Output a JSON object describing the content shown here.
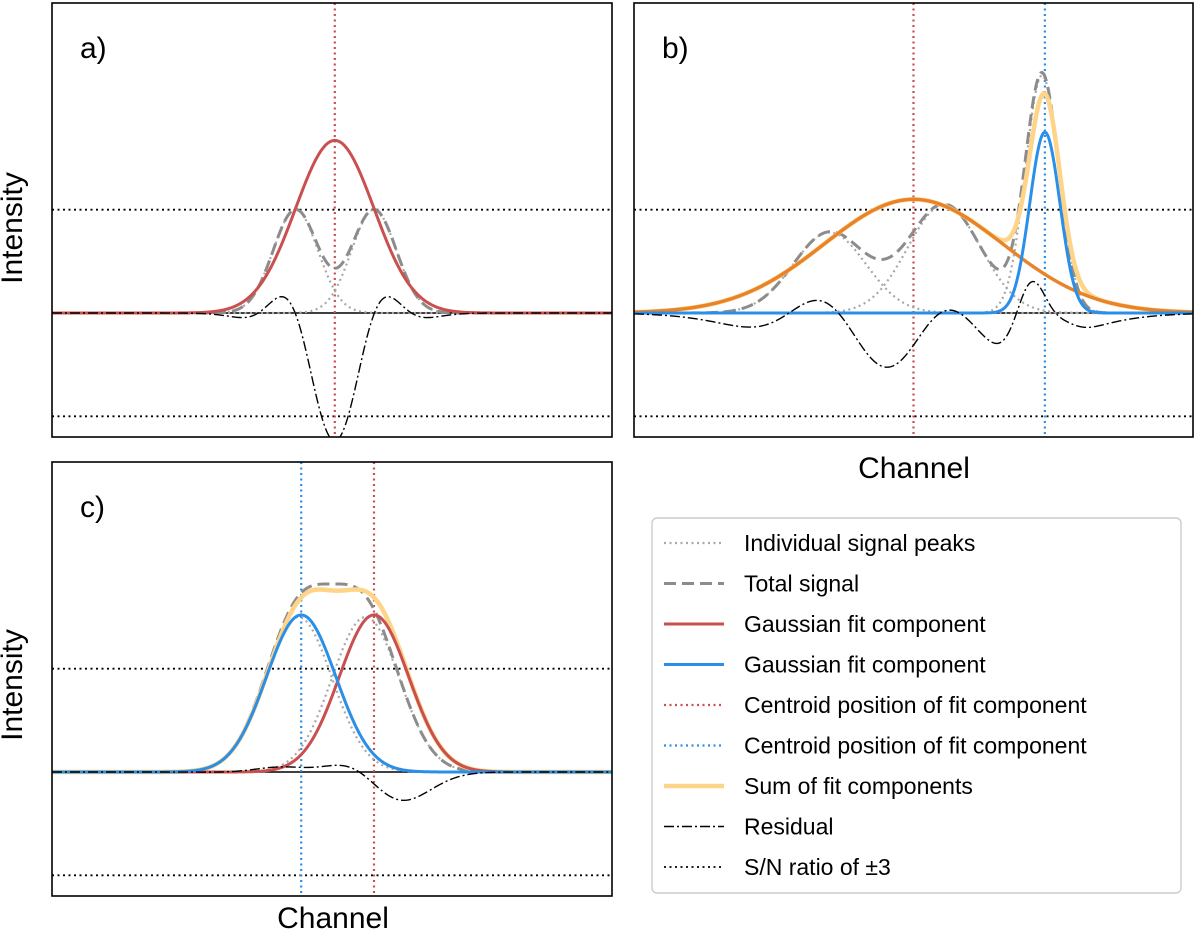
{
  "figure": {
    "shared_xlabel_top": "Channel",
    "shared_xlabel_bottom": "Channel",
    "colors": {
      "peaks": "#a8a8a8",
      "total": "#8c8c8c",
      "red": "#c9504f",
      "blue": "#2a8fe8",
      "sum": "#fdd488",
      "orange": "#e8832a",
      "black": "#000000"
    }
  },
  "chart_data": [
    {
      "type": "line",
      "panel": "a)",
      "ylabel": "Intensity",
      "xlabel": "",
      "xlim": [
        0,
        100
      ],
      "ylim": [
        -1.2,
        3.0
      ],
      "grid": false,
      "snr_levels": [
        1.0,
        -1.0
      ],
      "series": [
        {
          "name": "Individual signal peaks",
          "style": "peaks",
          "kind": "gauss",
          "components": [
            [
              1.0,
              43.5,
              4.0
            ]
          ]
        },
        {
          "name": "Individual signal peaks",
          "style": "peaks",
          "kind": "gauss",
          "components": [
            [
              1.0,
              57.5,
              4.0
            ]
          ]
        },
        {
          "name": "Total signal",
          "style": "total",
          "kind": "gauss",
          "components": [
            [
              1.0,
              43.5,
              4.0
            ],
            [
              1.0,
              57.5,
              4.0
            ]
          ]
        },
        {
          "name": "Gaussian fit component",
          "style": "red",
          "kind": "gauss",
          "components": [
            [
              1.67,
              50.5,
              7.0
            ]
          ]
        },
        {
          "name": "Residual",
          "style": "residual",
          "kind": "diff",
          "plus": [
            [
              1.0,
              43.5,
              4.0
            ],
            [
              1.0,
              57.5,
              4.0
            ]
          ],
          "minus": [
            [
              1.67,
              50.5,
              7.0
            ]
          ]
        }
      ],
      "centroids": [
        {
          "x": 50.5,
          "style": "red-centroid"
        }
      ]
    },
    {
      "type": "line",
      "panel": "b)",
      "ylabel": "",
      "xlabel": "",
      "xlim": [
        0,
        100
      ],
      "ylim": [
        -1.2,
        3.0
      ],
      "grid": false,
      "snr_levels": [
        1.0,
        -1.0
      ],
      "series": [
        {
          "name": "Individual signal peaks",
          "style": "peaks",
          "kind": "gauss",
          "components": [
            [
              0.78,
              35.0,
              6.5
            ]
          ]
        },
        {
          "name": "Individual signal peaks",
          "style": "peaks",
          "kind": "gauss",
          "components": [
            [
              1.05,
              55.5,
              6.5
            ]
          ]
        },
        {
          "name": "Individual signal peaks",
          "style": "peaks",
          "kind": "gauss",
          "components": [
            [
              2.3,
              73.0,
              3.0
            ]
          ]
        },
        {
          "name": "Total signal",
          "style": "total",
          "kind": "gauss",
          "components": [
            [
              0.78,
              35.0,
              6.5
            ],
            [
              1.05,
              55.5,
              6.5
            ],
            [
              2.3,
              73.0,
              3.0
            ]
          ]
        },
        {
          "name": "Sum of fit components",
          "style": "sum",
          "kind": "gauss",
          "components": [
            [
              1.1,
              50.0,
              16.0
            ],
            [
              1.75,
              73.5,
              2.7
            ]
          ]
        },
        {
          "name": "Gaussian fit component",
          "style": "orange",
          "kind": "gauss",
          "components": [
            [
              1.1,
              50.0,
              16.0
            ]
          ]
        },
        {
          "name": "Gaussian fit component",
          "style": "blue",
          "kind": "gauss",
          "components": [
            [
              1.75,
              73.5,
              2.7
            ]
          ]
        },
        {
          "name": "Residual",
          "style": "residual",
          "kind": "diff",
          "plus": [
            [
              0.78,
              35.0,
              6.5
            ],
            [
              1.05,
              55.5,
              6.5
            ],
            [
              2.3,
              73.0,
              3.0
            ]
          ],
          "minus": [
            [
              1.1,
              50.0,
              16.0
            ],
            [
              1.75,
              73.5,
              2.7
            ]
          ]
        }
      ],
      "centroids": [
        {
          "x": 50.0,
          "style": "red-centroid"
        },
        {
          "x": 73.5,
          "style": "blue-centroid"
        }
      ]
    },
    {
      "type": "line",
      "panel": "c)",
      "ylabel": "Intensity",
      "xlabel": "",
      "xlim": [
        0,
        100
      ],
      "ylim": [
        -1.2,
        3.0
      ],
      "grid": false,
      "snr_levels": [
        1.0,
        -1.0
      ],
      "series": [
        {
          "name": "Individual signal peaks",
          "style": "peaks",
          "kind": "gauss",
          "components": [
            [
              1.5,
              44.0,
              6.0
            ]
          ]
        },
        {
          "name": "Individual signal peaks",
          "style": "peaks",
          "kind": "gauss",
          "components": [
            [
              1.5,
              56.0,
              6.0
            ]
          ]
        },
        {
          "name": "Total signal",
          "style": "total",
          "kind": "gauss",
          "components": [
            [
              1.5,
              44.0,
              6.0
            ],
            [
              1.5,
              56.0,
              6.0
            ]
          ]
        },
        {
          "name": "Sum of fit components",
          "style": "sum",
          "kind": "gauss",
          "components": [
            [
              1.52,
              44.5,
              6.2
            ],
            [
              1.52,
              57.5,
              6.2
            ]
          ]
        },
        {
          "name": "Gaussian fit component",
          "style": "red",
          "kind": "gauss",
          "components": [
            [
              1.52,
              57.5,
              6.2
            ]
          ]
        },
        {
          "name": "Gaussian fit component",
          "style": "blue",
          "kind": "gauss",
          "components": [
            [
              1.52,
              44.5,
              6.2
            ]
          ]
        },
        {
          "name": "Residual",
          "style": "residual",
          "kind": "diff",
          "plus": [
            [
              1.5,
              44.0,
              6.0
            ],
            [
              1.5,
              56.0,
              6.0
            ]
          ],
          "minus": [
            [
              1.52,
              44.5,
              6.2
            ],
            [
              1.52,
              57.5,
              6.2
            ]
          ]
        }
      ],
      "centroids": [
        {
          "x": 44.5,
          "style": "blue-centroid"
        },
        {
          "x": 57.5,
          "style": "red-centroid"
        }
      ]
    }
  ],
  "legend": {
    "placement": "bottom-right",
    "entries": [
      {
        "label": "Individual signal peaks",
        "style": "peaks"
      },
      {
        "label": "Total signal",
        "style": "total"
      },
      {
        "label": "Gaussian fit component",
        "style": "red"
      },
      {
        "label": "Gaussian fit component",
        "style": "blue"
      },
      {
        "label": "Centroid position of fit component",
        "style": "red-centroid"
      },
      {
        "label": "Centroid position of fit component",
        "style": "blue-centroid"
      },
      {
        "label": "Sum of fit components",
        "style": "sum"
      },
      {
        "label": "Residual",
        "style": "residual"
      },
      {
        "label": "S/N ratio of ±3",
        "style": "snr"
      }
    ]
  }
}
